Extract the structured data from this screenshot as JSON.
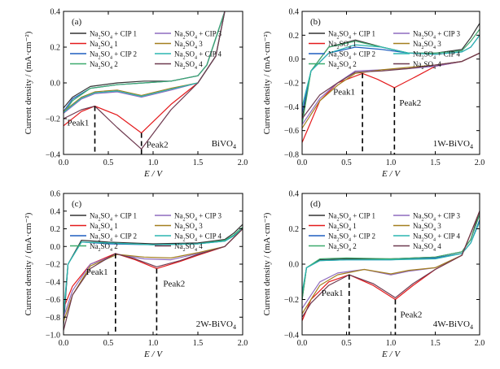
{
  "figure": {
    "title": "",
    "series_styles": [
      {
        "name": "Na2SO4 + CIP 1",
        "color": "#333333"
      },
      {
        "name": "Na2SO4 1",
        "color": "#e41a1c"
      },
      {
        "name": "Na2SO4 + CIP 2",
        "color": "#1f5fbf"
      },
      {
        "name": "Na2SO4 2",
        "color": "#3daa6e"
      },
      {
        "name": "Na2SO4 + CIP 3",
        "color": "#8e6bbf"
      },
      {
        "name": "Na2SO4 3",
        "color": "#a37f1f"
      },
      {
        "name": "Na2SO4 + CIP 4",
        "color": "#2bb5b0"
      },
      {
        "name": "Na2SO4 4",
        "color": "#6e3a50"
      }
    ]
  },
  "chart_data": [
    {
      "type": "line",
      "panel": "(a)",
      "sample": "BiVO",
      "sample_sub": "4",
      "xlabel": "E / V",
      "ylabel": "Current density / (mA·cm⁻²)",
      "xlim": [
        0.0,
        2.0
      ],
      "ylim": [
        -0.4,
        0.4
      ],
      "xticks": [
        "0.0",
        "0.5",
        "1.0",
        "1.5",
        "2.0"
      ],
      "yticks": [
        "−0.4",
        "−0.2",
        "0.0",
        "0.2",
        "0.4"
      ],
      "annotations": [
        {
          "label": "Peak1",
          "x": 0.35,
          "y": -0.13
        },
        {
          "label": "Peak2",
          "x": 0.87,
          "y": -0.28
        }
      ],
      "series": [
        {
          "name": "Na2SO4 + CIP 1",
          "x": [
            0,
            0.1,
            0.3,
            0.6,
            0.9,
            1.2,
            1.5,
            1.6,
            1.7,
            1.8
          ],
          "y": [
            -0.14,
            -0.08,
            -0.02,
            0.0,
            0.01,
            0.01,
            0.04,
            0.1,
            0.25,
            0.4
          ]
        },
        {
          "name": "Na2SO4 1",
          "x": [
            1.8,
            1.7,
            1.5,
            1.2,
            0.87,
            0.6,
            0.35,
            0.2,
            0.0
          ],
          "y": [
            0.4,
            0.15,
            0.0,
            -0.12,
            -0.28,
            -0.18,
            -0.13,
            -0.16,
            -0.24
          ]
        },
        {
          "name": "Na2SO4 + CIP 2",
          "x": [
            0,
            0.1,
            0.3,
            0.6,
            0.9,
            1.2,
            1.5,
            1.6,
            1.7,
            1.8
          ],
          "y": [
            -0.16,
            -0.09,
            -0.03,
            -0.01,
            0.0,
            0.01,
            0.04,
            0.1,
            0.25,
            0.4
          ]
        },
        {
          "name": "Na2SO4 2",
          "x": [
            0,
            0.1,
            0.3,
            0.6,
            0.9,
            1.2,
            1.5,
            1.6,
            1.7,
            1.8
          ],
          "y": [
            -0.17,
            -0.1,
            -0.03,
            -0.01,
            0.0,
            0.01,
            0.04,
            0.1,
            0.25,
            0.4
          ]
        },
        {
          "name": "Na2SO4 + CIP 3",
          "x": [
            1.8,
            1.7,
            1.5,
            1.2,
            0.87,
            0.6,
            0.35,
            0.2,
            0.0
          ],
          "y": [
            0.4,
            0.15,
            0.0,
            -0.04,
            -0.08,
            -0.05,
            -0.06,
            -0.09,
            -0.17
          ]
        },
        {
          "name": "Na2SO4 3",
          "x": [
            1.8,
            1.7,
            1.5,
            1.2,
            0.87,
            0.6,
            0.35,
            0.2,
            0.0
          ],
          "y": [
            0.4,
            0.15,
            0.0,
            -0.03,
            -0.07,
            -0.04,
            -0.05,
            -0.08,
            -0.16
          ]
        },
        {
          "name": "Na2SO4 + CIP 4",
          "x": [
            1.8,
            1.7,
            1.5,
            1.2,
            0.87,
            0.6,
            0.35,
            0.2,
            0.0
          ],
          "y": [
            0.4,
            0.15,
            0.0,
            -0.035,
            -0.075,
            -0.045,
            -0.055,
            -0.085,
            -0.165
          ]
        },
        {
          "name": "Na2SO4 4",
          "x": [
            1.8,
            1.7,
            1.5,
            1.2,
            0.87,
            0.6,
            0.35,
            0.2,
            0.0
          ],
          "y": [
            0.4,
            0.15,
            0.0,
            -0.15,
            -0.37,
            -0.25,
            -0.13,
            -0.15,
            -0.2
          ]
        }
      ]
    },
    {
      "type": "line",
      "panel": "(b)",
      "sample": "1W-BiVO",
      "sample_sub": "4",
      "xlabel": "E / V",
      "ylabel": "Current density / (mA·cm⁻²)",
      "xlim": [
        0.0,
        2.0
      ],
      "ylim": [
        -0.8,
        0.4
      ],
      "xticks": [
        "0.0",
        "0.5",
        "1.0",
        "1.5",
        "2.0"
      ],
      "yticks": [
        "−0.8",
        "−0.6",
        "−0.4",
        "−0.2",
        "0.0",
        "0.2",
        "0.4"
      ],
      "annotations": [
        {
          "label": "Peak1",
          "x": 0.68,
          "y": -0.12
        },
        {
          "label": "Peak2",
          "x": 1.04,
          "y": -0.24
        }
      ],
      "series": [
        {
          "name": "Na2SO4 + CIP 1",
          "x": [
            0,
            0.1,
            0.3,
            0.6,
            0.9,
            1.2,
            1.5,
            1.8,
            1.9,
            2.0
          ],
          "y": [
            -0.5,
            -0.1,
            0.1,
            0.16,
            0.1,
            0.05,
            0.05,
            0.08,
            0.18,
            0.3
          ]
        },
        {
          "name": "Na2SO4 1",
          "x": [
            2.0,
            1.8,
            1.5,
            1.3,
            1.04,
            0.85,
            0.68,
            0.4,
            0.2,
            0.0
          ],
          "y": [
            0.05,
            -0.02,
            -0.06,
            -0.14,
            -0.24,
            -0.17,
            -0.12,
            -0.2,
            -0.35,
            -0.7
          ]
        },
        {
          "name": "Na2SO4 + CIP 2",
          "x": [
            0,
            0.1,
            0.3,
            0.6,
            0.9,
            1.2,
            1.5,
            1.8,
            1.9,
            2.0
          ],
          "y": [
            -0.45,
            -0.1,
            0.05,
            0.1,
            0.08,
            0.05,
            0.04,
            0.06,
            0.1,
            0.2
          ]
        },
        {
          "name": "Na2SO4 2",
          "x": [
            0,
            0.1,
            0.3,
            0.6,
            0.9,
            1.2,
            1.5,
            1.8,
            1.9,
            2.0
          ],
          "y": [
            -0.55,
            -0.1,
            0.1,
            0.15,
            0.1,
            0.05,
            0.05,
            0.07,
            0.15,
            0.25
          ]
        },
        {
          "name": "Na2SO4 + CIP 3",
          "x": [
            2.0,
            1.8,
            1.5,
            1.2,
            0.9,
            0.6,
            0.4,
            0.2,
            0.0
          ],
          "y": [
            0.05,
            -0.02,
            -0.06,
            -0.08,
            -0.09,
            -0.1,
            -0.2,
            -0.33,
            -0.55
          ]
        },
        {
          "name": "Na2SO4 3",
          "x": [
            2.0,
            1.8,
            1.5,
            1.2,
            0.9,
            0.6,
            0.4,
            0.2,
            0.0
          ],
          "y": [
            0.05,
            -0.02,
            -0.05,
            -0.07,
            -0.09,
            -0.12,
            -0.22,
            -0.35,
            -0.58
          ]
        },
        {
          "name": "Na2SO4 + CIP 4",
          "x": [
            0,
            0.1,
            0.3,
            0.6,
            0.9,
            1.2,
            1.5,
            1.8,
            1.9,
            2.0
          ],
          "y": [
            -0.4,
            -0.1,
            0.05,
            0.12,
            0.1,
            0.05,
            0.04,
            0.06,
            0.1,
            0.2
          ]
        },
        {
          "name": "Na2SO4 4",
          "x": [
            2.0,
            1.8,
            1.5,
            1.2,
            0.9,
            0.6,
            0.4,
            0.2,
            0.0
          ],
          "y": [
            0.05,
            -0.02,
            -0.05,
            -0.08,
            -0.1,
            -0.11,
            -0.2,
            -0.3,
            -0.5
          ]
        }
      ]
    },
    {
      "type": "line",
      "panel": "(c)",
      "sample": "2W-BiVO",
      "sample_sub": "4",
      "xlabel": "E / V",
      "ylabel": "Current density / (mA·cm⁻²)",
      "xlim": [
        0.0,
        2.0
      ],
      "ylim": [
        -1.0,
        0.6
      ],
      "xticks": [
        "0.0",
        "0.5",
        "1.0",
        "1.5",
        "2.0"
      ],
      "yticks": [
        "−1.0",
        "−0.8",
        "−0.6",
        "−0.4",
        "−0.2",
        "0.0",
        "0.2",
        "0.4",
        "0.6"
      ],
      "annotations": [
        {
          "label": "Peak1",
          "x": 0.58,
          "y": -0.08
        },
        {
          "label": "Peak2",
          "x": 1.04,
          "y": -0.25
        }
      ],
      "series": [
        {
          "name": "Na2SO4 + CIP 1",
          "x": [
            0,
            0.05,
            0.2,
            0.5,
            1.0,
            1.5,
            1.8,
            1.9,
            2.0
          ],
          "y": [
            -0.9,
            -0.2,
            0.07,
            0.05,
            0.03,
            0.04,
            0.08,
            0.15,
            0.25
          ]
        },
        {
          "name": "Na2SO4 1",
          "x": [
            2.0,
            1.8,
            1.5,
            1.3,
            1.04,
            0.8,
            0.58,
            0.3,
            0.1,
            0.0
          ],
          "y": [
            0.2,
            0.0,
            -0.1,
            -0.17,
            -0.25,
            -0.15,
            -0.08,
            -0.2,
            -0.45,
            -0.7
          ]
        },
        {
          "name": "Na2SO4 + CIP 2",
          "x": [
            0,
            0.05,
            0.2,
            0.5,
            1.0,
            1.5,
            1.8,
            1.9,
            2.0
          ],
          "y": [
            -0.85,
            -0.2,
            0.05,
            0.03,
            0.02,
            0.03,
            0.06,
            0.12,
            0.2
          ]
        },
        {
          "name": "Na2SO4 2",
          "x": [
            0,
            0.05,
            0.2,
            0.5,
            1.0,
            1.5,
            1.8,
            1.9,
            2.0
          ],
          "y": [
            -0.8,
            -0.2,
            0.05,
            0.04,
            0.02,
            0.03,
            0.07,
            0.13,
            0.22
          ]
        },
        {
          "name": "Na2SO4 + CIP 3",
          "x": [
            2.0,
            1.8,
            1.5,
            1.2,
            0.9,
            0.6,
            0.3,
            0.1,
            0.0
          ],
          "y": [
            0.2,
            0.0,
            -0.08,
            -0.15,
            -0.14,
            -0.09,
            -0.2,
            -0.5,
            -0.8
          ]
        },
        {
          "name": "Na2SO4 3",
          "x": [
            2.0,
            1.8,
            1.5,
            1.2,
            0.9,
            0.6,
            0.3,
            0.1,
            0.0
          ],
          "y": [
            0.2,
            0.0,
            -0.07,
            -0.13,
            -0.12,
            -0.09,
            -0.22,
            -0.55,
            -0.85
          ]
        },
        {
          "name": "Na2SO4 + CIP 4",
          "x": [
            0,
            0.05,
            0.2,
            0.5,
            1.0,
            1.5,
            1.8,
            1.9,
            2.0
          ],
          "y": [
            -0.75,
            -0.2,
            0.05,
            0.04,
            0.02,
            0.03,
            0.06,
            0.12,
            0.2
          ]
        },
        {
          "name": "Na2SO4 4",
          "x": [
            2.0,
            1.8,
            1.5,
            1.3,
            1.04,
            0.8,
            0.58,
            0.3,
            0.1,
            0.0
          ],
          "y": [
            0.2,
            0.0,
            -0.09,
            -0.16,
            -0.23,
            -0.14,
            -0.08,
            -0.25,
            -0.55,
            -0.95
          ]
        }
      ]
    },
    {
      "type": "line",
      "panel": "(d)",
      "sample": "4W-BiVO",
      "sample_sub": "4",
      "xlabel": "E / V",
      "ylabel": "Current density / (mA·cm⁻²)",
      "xlim": [
        0.0,
        2.0
      ],
      "ylim": [
        -0.4,
        0.4
      ],
      "xticks": [
        "0.0",
        "0.5",
        "1.0",
        "1.5",
        "2.0"
      ],
      "yticks": [
        "−0.4",
        "−0.2",
        "0.0",
        "0.2",
        "0.4"
      ],
      "annotations": [
        {
          "label": "Peak1",
          "x": 0.53,
          "y": -0.06
        },
        {
          "label": "Peak2",
          "x": 1.05,
          "y": -0.2
        }
      ],
      "series": [
        {
          "name": "Na2SO4 + CIP 1",
          "x": [
            0,
            0.05,
            0.2,
            0.5,
            1.0,
            1.5,
            1.8,
            1.9,
            2.0
          ],
          "y": [
            -0.2,
            -0.02,
            0.025,
            0.03,
            0.03,
            0.04,
            0.07,
            0.14,
            0.3
          ]
        },
        {
          "name": "Na2SO4 1",
          "x": [
            2.0,
            1.8,
            1.5,
            1.25,
            1.05,
            0.8,
            0.53,
            0.3,
            0.1,
            0.0
          ],
          "y": [
            0.3,
            0.05,
            -0.03,
            -0.12,
            -0.2,
            -0.12,
            -0.06,
            -0.1,
            -0.2,
            -0.32
          ]
        },
        {
          "name": "Na2SO4 + CIP 2",
          "x": [
            0,
            0.05,
            0.2,
            0.5,
            1.0,
            1.5,
            1.8,
            1.9,
            2.0
          ],
          "y": [
            -0.18,
            -0.02,
            0.02,
            0.025,
            0.025,
            0.035,
            0.06,
            0.12,
            0.25
          ]
        },
        {
          "name": "Na2SO4 2",
          "x": [
            0,
            0.05,
            0.2,
            0.5,
            1.0,
            1.5,
            1.8,
            1.9,
            2.0
          ],
          "y": [
            -0.2,
            -0.02,
            0.03,
            0.035,
            0.03,
            0.04,
            0.07,
            0.14,
            0.28
          ]
        },
        {
          "name": "Na2SO4 + CIP 3",
          "x": [
            2.0,
            1.8,
            1.5,
            1.2,
            1.0,
            0.7,
            0.4,
            0.2,
            0.0
          ],
          "y": [
            0.3,
            0.05,
            -0.02,
            -0.04,
            -0.06,
            -0.03,
            -0.05,
            -0.1,
            -0.25
          ]
        },
        {
          "name": "Na2SO4 3",
          "x": [
            2.0,
            1.8,
            1.5,
            1.2,
            1.0,
            0.7,
            0.4,
            0.2,
            0.0
          ],
          "y": [
            0.3,
            0.05,
            -0.02,
            -0.035,
            -0.055,
            -0.03,
            -0.06,
            -0.12,
            -0.28
          ]
        },
        {
          "name": "Na2SO4 + CIP 4",
          "x": [
            0,
            0.05,
            0.2,
            0.5,
            1.0,
            1.5,
            1.8,
            1.9,
            2.0
          ],
          "y": [
            -0.16,
            -0.02,
            0.02,
            0.025,
            0.025,
            0.03,
            0.06,
            0.12,
            0.24
          ]
        },
        {
          "name": "Na2SO4 4",
          "x": [
            2.0,
            1.8,
            1.5,
            1.25,
            1.05,
            0.8,
            0.53,
            0.3,
            0.1,
            0.0
          ],
          "y": [
            0.3,
            0.05,
            -0.03,
            -0.11,
            -0.19,
            -0.11,
            -0.06,
            -0.12,
            -0.22,
            -0.3
          ]
        }
      ]
    }
  ],
  "legend": {
    "left": [
      {
        "pre": "Na",
        "sub1": "2",
        "mid": "SO",
        "sub2": "4",
        "post": " + CIP 1",
        "series": 0
      },
      {
        "pre": "Na",
        "sub1": "2",
        "mid": "SO",
        "sub2": "4",
        "post": " 1",
        "series": 1
      },
      {
        "pre": "Na",
        "sub1": "2",
        "mid": "SO",
        "sub2": "4",
        "post": " + CIP 2",
        "series": 2
      },
      {
        "pre": "Na",
        "sub1": "2",
        "mid": "SO",
        "sub2": "4",
        "post": " 2",
        "series": 3
      }
    ],
    "right": [
      {
        "pre": "Na",
        "sub1": "2",
        "mid": "SO",
        "sub2": "4",
        "post": " + CIP 3",
        "series": 4
      },
      {
        "pre": "Na",
        "sub1": "2",
        "mid": "SO",
        "sub2": "4",
        "post": " 3",
        "series": 5
      },
      {
        "pre": "Na",
        "sub1": "2",
        "mid": "SO",
        "sub2": "4",
        "post": " + CIP 4",
        "series": 6
      },
      {
        "pre": "Na",
        "sub1": "2",
        "mid": "SO",
        "sub2": "4",
        "post": " 4",
        "series": 7
      }
    ]
  }
}
